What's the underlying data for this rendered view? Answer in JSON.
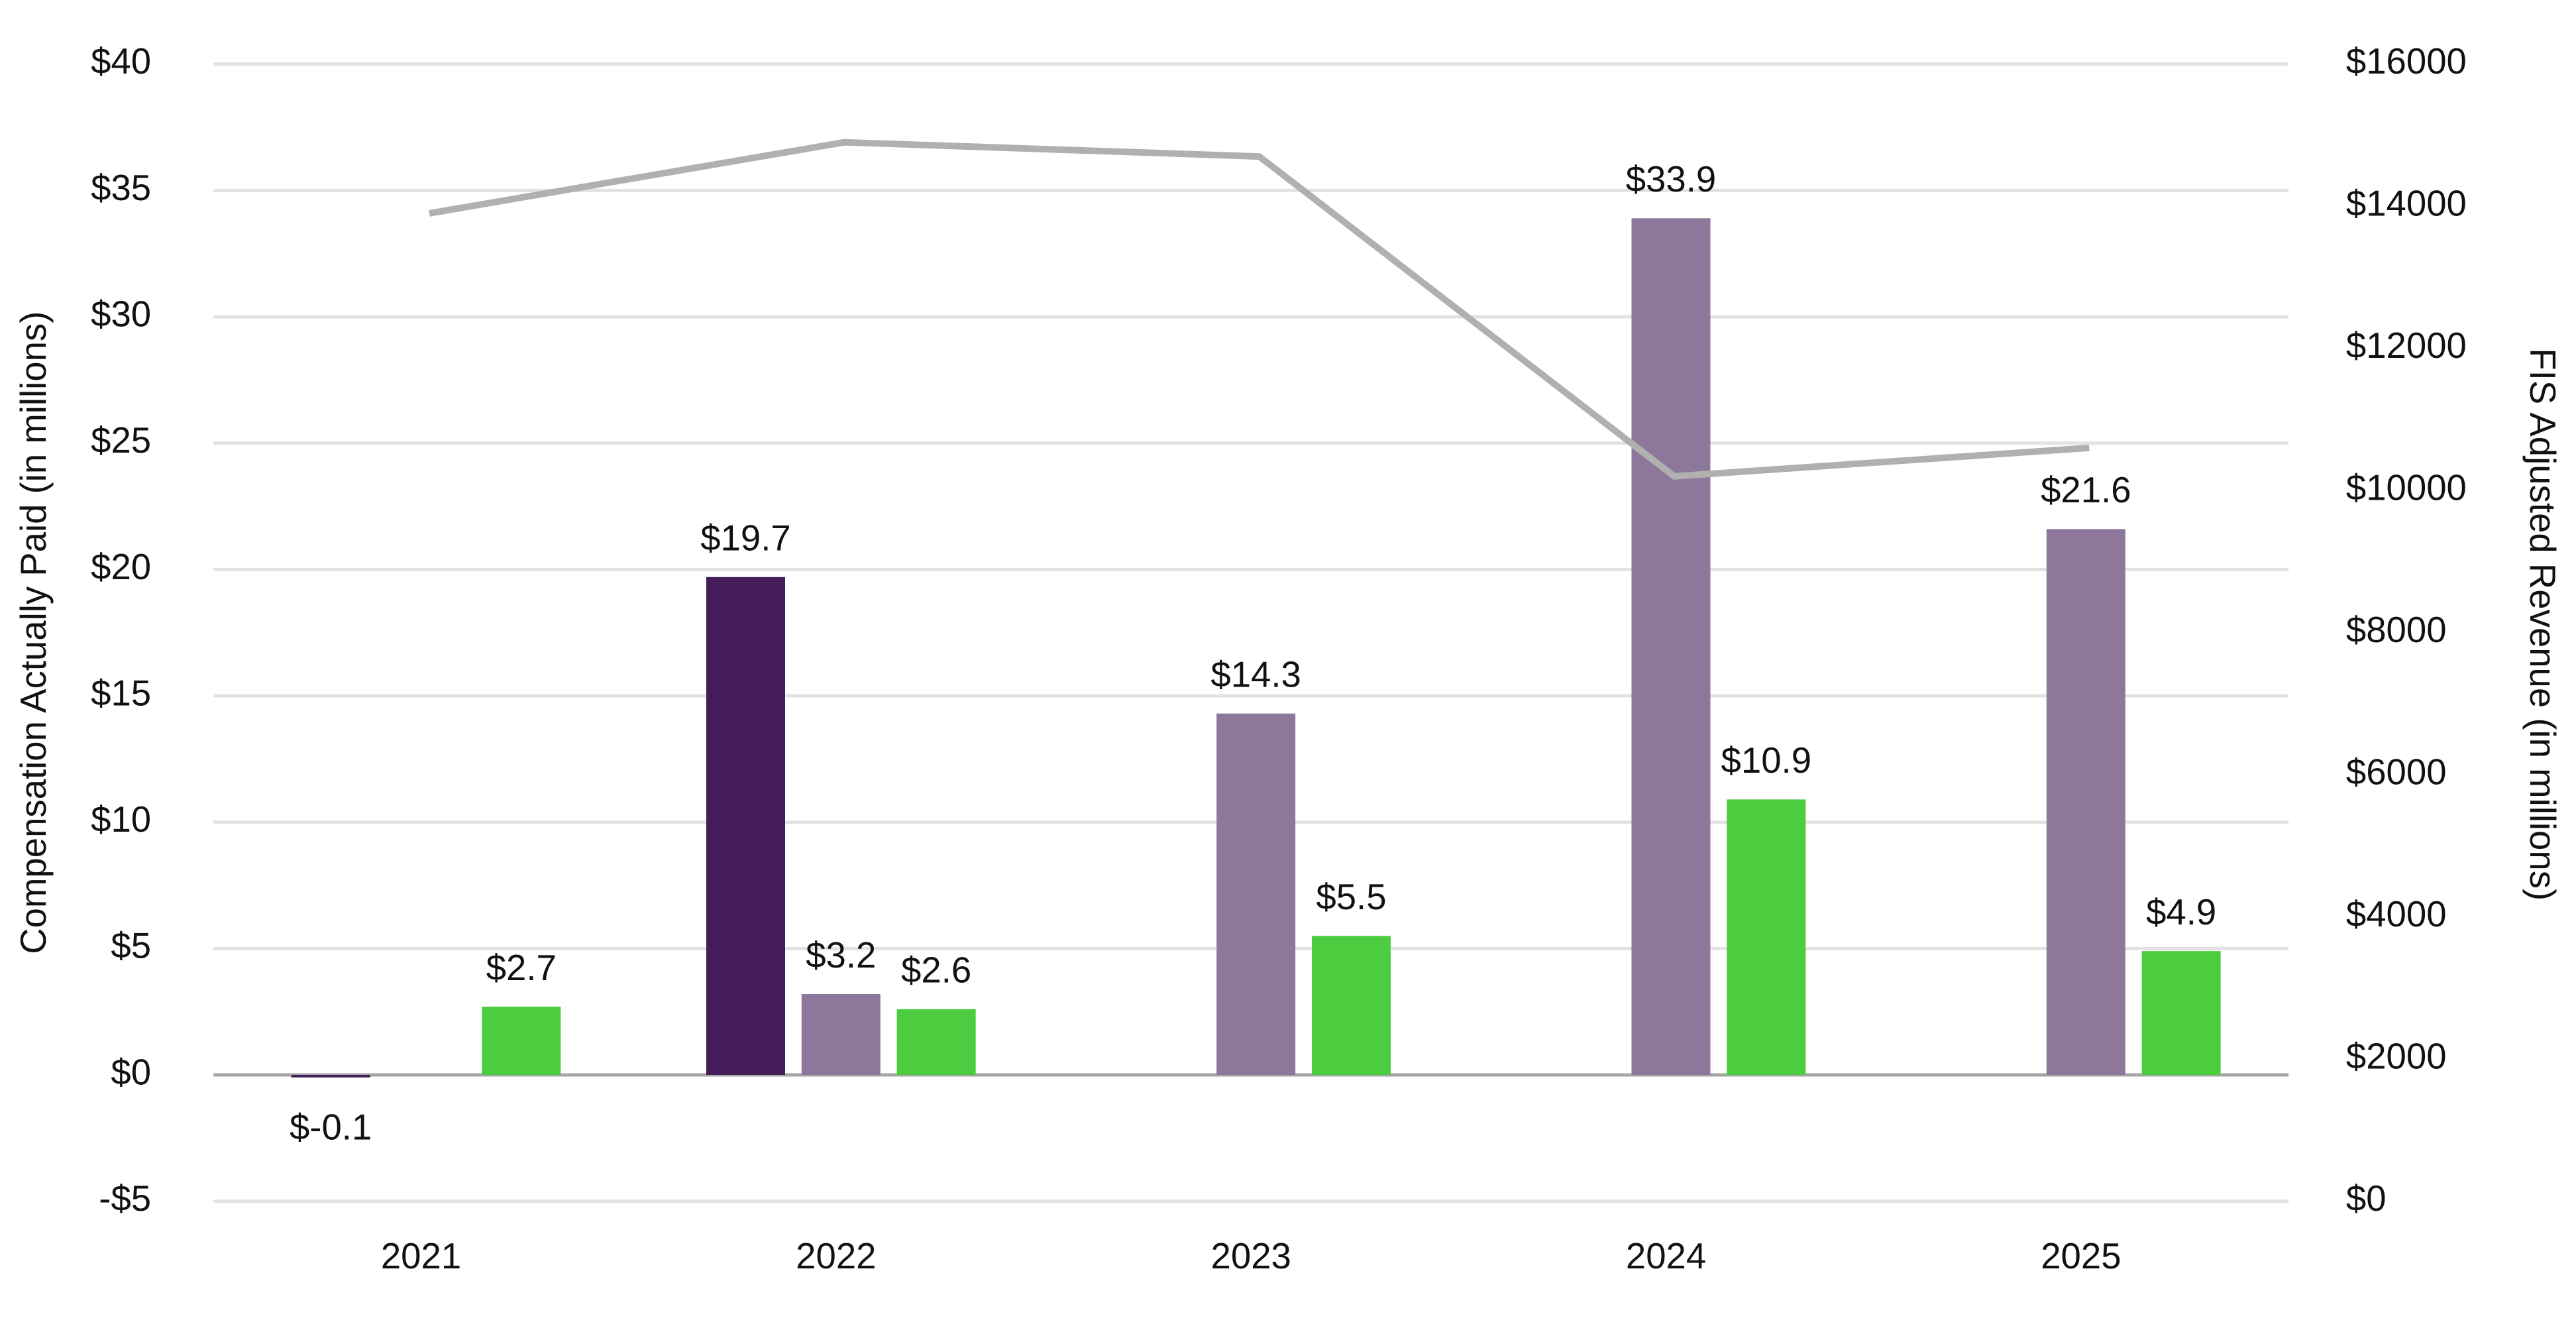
{
  "chart_data": {
    "type": "bar",
    "categories": [
      "2021",
      "2022",
      "2023",
      "2024",
      "2025"
    ],
    "series": [
      {
        "type": "bar",
        "color": "#451c5a",
        "values": [
          -0.1,
          19.7,
          null,
          null,
          null
        ],
        "value_labels": [
          "$-0.1",
          "$19.7",
          null,
          null,
          null
        ]
      },
      {
        "type": "bar",
        "color": "#8d789c",
        "values": [
          null,
          3.2,
          14.3,
          33.9,
          21.6
        ],
        "value_labels": [
          null,
          "$3.2",
          "$14.3",
          "$33.9",
          "$21.6"
        ]
      },
      {
        "type": "bar",
        "color": "#4ccc3f",
        "values": [
          2.7,
          2.6,
          5.5,
          10.9,
          4.9
        ],
        "value_labels": [
          "$2.7",
          "$2.6",
          "$5.5",
          "$10.9",
          "$4.9"
        ]
      },
      {
        "type": "line",
        "axis": "y2",
        "color": "#b0b0b0",
        "values": [
          13900,
          14900,
          14700,
          10200,
          10600
        ]
      }
    ],
    "ylabel": "Compensation Actually Paid (in millions)",
    "y2label": "FIS Adjusted Revenue (in millions)",
    "ylim": [
      -5,
      40
    ],
    "yticks": [
      {
        "value": -5,
        "label": "-$5"
      },
      {
        "value": 0,
        "label": "$0"
      },
      {
        "value": 5,
        "label": "$5"
      },
      {
        "value": 10,
        "label": "$10"
      },
      {
        "value": 15,
        "label": "$15"
      },
      {
        "value": 20,
        "label": "$20"
      },
      {
        "value": 25,
        "label": "$25"
      },
      {
        "value": 30,
        "label": "$30"
      },
      {
        "value": 35,
        "label": "$35"
      },
      {
        "value": 40,
        "label": "$40"
      }
    ],
    "y2lim": [
      0,
      16000
    ],
    "y2ticks": [
      {
        "value": 0,
        "label": "$0"
      },
      {
        "value": 2000,
        "label": "$2000"
      },
      {
        "value": 4000,
        "label": "$4000"
      },
      {
        "value": 6000,
        "label": "$6000"
      },
      {
        "value": 8000,
        "label": "$8000"
      },
      {
        "value": 10000,
        "label": "$10000"
      },
      {
        "value": 12000,
        "label": "$12000"
      },
      {
        "value": 14000,
        "label": "$14000"
      },
      {
        "value": 16000,
        "label": "$16000"
      }
    ],
    "grid": true
  }
}
